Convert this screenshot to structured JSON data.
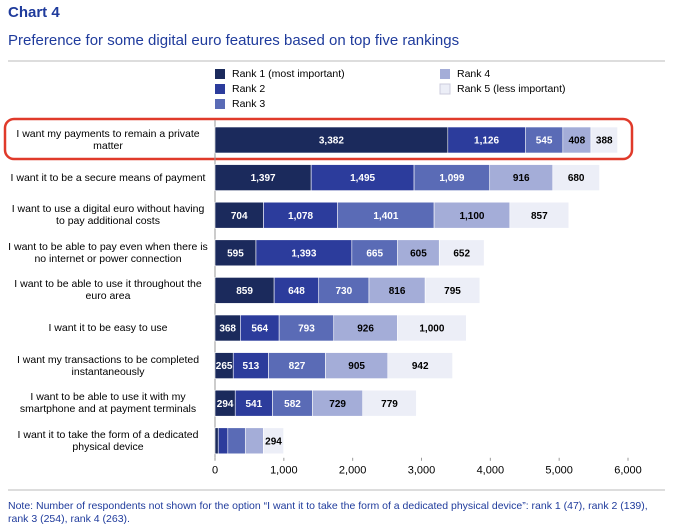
{
  "chart_data": {
    "type": "stacked-barh",
    "title": "Chart 4",
    "subtitle": "Preference for some digital euro features based on top five rankings",
    "note": "Note: Number of respondents not shown for the option “I want it to take the form of a dedicated physical device”: rank 1 (47), rank 2 (139), rank 3 (254), rank 4 (263).",
    "categories": [
      "I want my payments to remain a private matter",
      "I want it to be a secure means of payment",
      "I want to use a digital euro without having to pay additional costs",
      "I want to be able to pay even when there is no internet or power connection",
      "I want to be able to use it throughout the euro area",
      "I want it to be easy to use",
      "I want my transactions to be completed instantaneously",
      "I want to be able to use it with my smartphone and at payment terminals",
      "I want it to take the form of a dedicated physical device"
    ],
    "series": [
      {
        "name": "Rank 1 (most important)",
        "color": "#1b2a5c",
        "values": [
          3382,
          1397,
          704,
          595,
          859,
          368,
          265,
          294,
          47
        ],
        "value_labels": [
          "3,382",
          "1,397",
          "704",
          "595",
          "859",
          "368",
          "265",
          "294",
          null
        ]
      },
      {
        "name": "Rank 2",
        "color": "#2c3c9c",
        "values": [
          1126,
          1495,
          1078,
          1393,
          648,
          564,
          513,
          541,
          139
        ],
        "value_labels": [
          "1,126",
          "1,495",
          "1,078",
          "1,393",
          "648",
          "564",
          "513",
          "541",
          null
        ]
      },
      {
        "name": "Rank 3",
        "color": "#5a6bb6",
        "values": [
          545,
          1099,
          1401,
          665,
          730,
          793,
          827,
          582,
          254
        ],
        "value_labels": [
          "545",
          "1,099",
          "1,401",
          "665",
          "730",
          "793",
          "827",
          "582",
          null
        ]
      },
      {
        "name": "Rank 4",
        "color": "#a4add8",
        "values": [
          408,
          916,
          1100,
          605,
          816,
          926,
          905,
          729,
          263
        ],
        "value_labels": [
          "408",
          "916",
          "1,100",
          "605",
          "816",
          "926",
          "905",
          "729",
          null
        ]
      },
      {
        "name": "Rank 5 (less important)",
        "color": "#eceef7",
        "values": [
          388,
          680,
          857,
          652,
          795,
          1000,
          942,
          779,
          294
        ],
        "value_labels": [
          "388",
          "680",
          "857",
          "652",
          "795",
          "1,000",
          "942",
          "779",
          "294"
        ]
      }
    ],
    "xlim": [
      0,
      6000
    ],
    "xticks": [
      0,
      {
        "value": 1000,
        "label": "1,000"
      },
      {
        "value": 2000,
        "label": "2,000"
      },
      {
        "value": 3000,
        "label": "3,000"
      },
      {
        "value": 4000,
        "label": "4,000"
      },
      {
        "value": 5000,
        "label": "5,000"
      },
      {
        "value": 6000,
        "label": "6,000"
      }
    ]
  }
}
